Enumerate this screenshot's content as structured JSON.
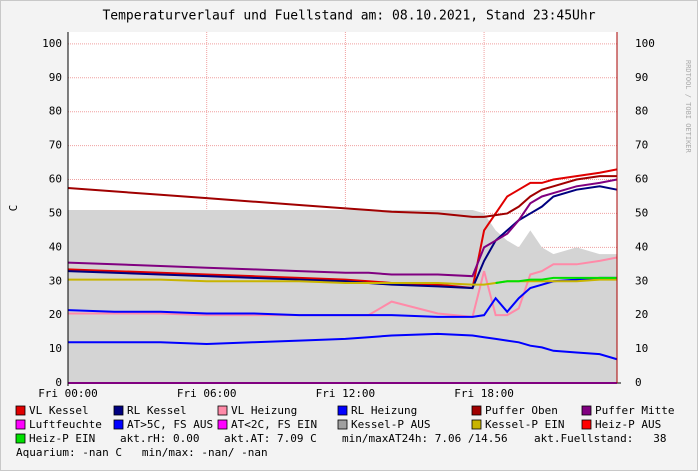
{
  "chart_data": {
    "type": "line",
    "title": "Temperaturverlauf und Fuellstand am: 08.10.2021, Stand 23:45Uhr",
    "ylabel": "C",
    "watermark": "RRDTOOL / TOBI OETIKER",
    "x": [
      0,
      2,
      4,
      6,
      8,
      10,
      12,
      13,
      14,
      16,
      17.5,
      18,
      18.5,
      19,
      19.5,
      20,
      20.5,
      21,
      22,
      23,
      23.75
    ],
    "xlim": [
      0,
      23.75
    ],
    "xticks": [
      {
        "value": 0,
        "label": "Fri 00:00"
      },
      {
        "value": 6,
        "label": "Fri 06:00"
      },
      {
        "value": 12,
        "label": "Fri 12:00"
      },
      {
        "value": 18,
        "label": "Fri 18:00"
      }
    ],
    "ylim": [
      0,
      103.5
    ],
    "yticks": [
      0,
      10,
      20,
      30,
      40,
      50,
      60,
      70,
      80,
      90,
      100
    ],
    "grid": true,
    "series": [
      {
        "name": "VL Kessel",
        "color": "#e00000",
        "values": [
          33.5,
          33,
          32.5,
          32,
          31.5,
          31,
          30.5,
          30,
          29.5,
          29,
          28,
          45,
          50,
          55,
          57,
          59,
          59,
          60,
          61,
          62,
          63
        ]
      },
      {
        "name": "RL Kessel",
        "color": "#000080",
        "values": [
          33,
          32.5,
          32,
          31.5,
          31,
          30.5,
          30,
          29.5,
          29,
          28.5,
          28,
          36,
          42,
          45,
          48,
          50,
          52,
          55,
          57,
          58,
          57
        ]
      },
      {
        "name": "VL Heizung",
        "color": "#ff8aa8",
        "values": [
          20.5,
          20.5,
          20.5,
          20,
          20,
          20,
          20,
          20,
          24,
          20.5,
          19.5,
          33,
          20,
          20,
          22,
          32,
          33,
          35,
          35,
          36,
          37
        ]
      },
      {
        "name": "RL Heizung",
        "color": "#0000ff",
        "values": [
          21.5,
          21,
          21,
          20.5,
          20.5,
          20,
          20,
          20,
          20,
          19.5,
          19.5,
          20,
          25,
          21,
          25,
          28,
          29,
          30,
          30.5,
          31,
          31
        ]
      },
      {
        "name": "Puffer Oben",
        "color": "#a00000",
        "values": [
          57.5,
          56.5,
          55.5,
          54.5,
          53.5,
          52.5,
          51.5,
          51,
          50.5,
          50,
          49,
          49,
          49.5,
          50,
          52,
          55,
          57,
          58,
          60,
          61,
          61
        ]
      },
      {
        "name": "Puffer Mitte",
        "color": "#800080",
        "values": [
          35.5,
          35,
          34.5,
          34,
          33.5,
          33,
          32.5,
          32.5,
          32,
          32,
          31.5,
          40,
          42,
          44,
          48,
          53,
          55,
          56,
          58,
          59,
          60
        ]
      },
      {
        "name": "Luftfeuchte",
        "color": "#ff00ff",
        "values": [
          0,
          0,
          0,
          0,
          0,
          0,
          0,
          0,
          0,
          0,
          0,
          0,
          0,
          0,
          0,
          0,
          0,
          0,
          0,
          0,
          0
        ]
      },
      {
        "name": "AT>5C, FS AUS",
        "color": "#0000ff",
        "values": [
          12,
          12,
          12,
          11.5,
          12,
          12.5,
          13,
          13.5,
          14,
          14.5,
          14,
          13.5,
          13,
          12.5,
          12,
          11,
          10.5,
          9.5,
          9,
          8.5,
          7
        ]
      },
      {
        "name": "AT<2C, FS EIN",
        "color": "#ff00ff",
        "values": [
          null,
          null,
          null,
          null,
          null,
          null,
          null,
          null,
          null,
          null,
          null,
          null,
          null,
          null,
          null,
          null,
          null,
          null,
          null,
          null,
          null
        ]
      },
      {
        "name": "Kessel-P AUS",
        "color": "#a0a0a0",
        "area": true,
        "values": [
          51,
          51,
          51,
          51,
          51,
          51,
          51,
          51,
          51,
          51,
          51,
          50,
          45,
          42,
          40,
          45,
          40,
          38,
          40,
          38,
          38
        ]
      },
      {
        "name": "Kessel-P EIN",
        "color": "#c8b400",
        "values": [
          30.5,
          30.5,
          30.5,
          30,
          30,
          30,
          29.5,
          29.5,
          29.5,
          29.5,
          29,
          29,
          29.5,
          30,
          30,
          30,
          30,
          30,
          30,
          30.5,
          30.5
        ]
      },
      {
        "name": "Heiz-P AUS",
        "color": "#ff0000",
        "values": [
          null,
          null,
          null,
          null,
          null,
          null,
          null,
          null,
          null,
          null,
          null,
          null,
          null,
          null,
          null,
          null,
          null,
          null,
          null,
          null,
          null
        ]
      },
      {
        "name": "Heiz-P EIN",
        "color": "#00e000",
        "values": [
          null,
          null,
          null,
          null,
          null,
          null,
          null,
          null,
          null,
          null,
          null,
          null,
          29.5,
          30,
          30,
          30.5,
          30.5,
          31,
          31,
          31,
          31
        ]
      }
    ],
    "notes": [
      "akt.rH: 0.00",
      "akt.AT: 7.09 C",
      "min/maxAT24h: 7.06 /14.56",
      "akt.Fuellstand:   38",
      "Aquarium: -nan C   min/max: -nan/ -nan"
    ]
  }
}
